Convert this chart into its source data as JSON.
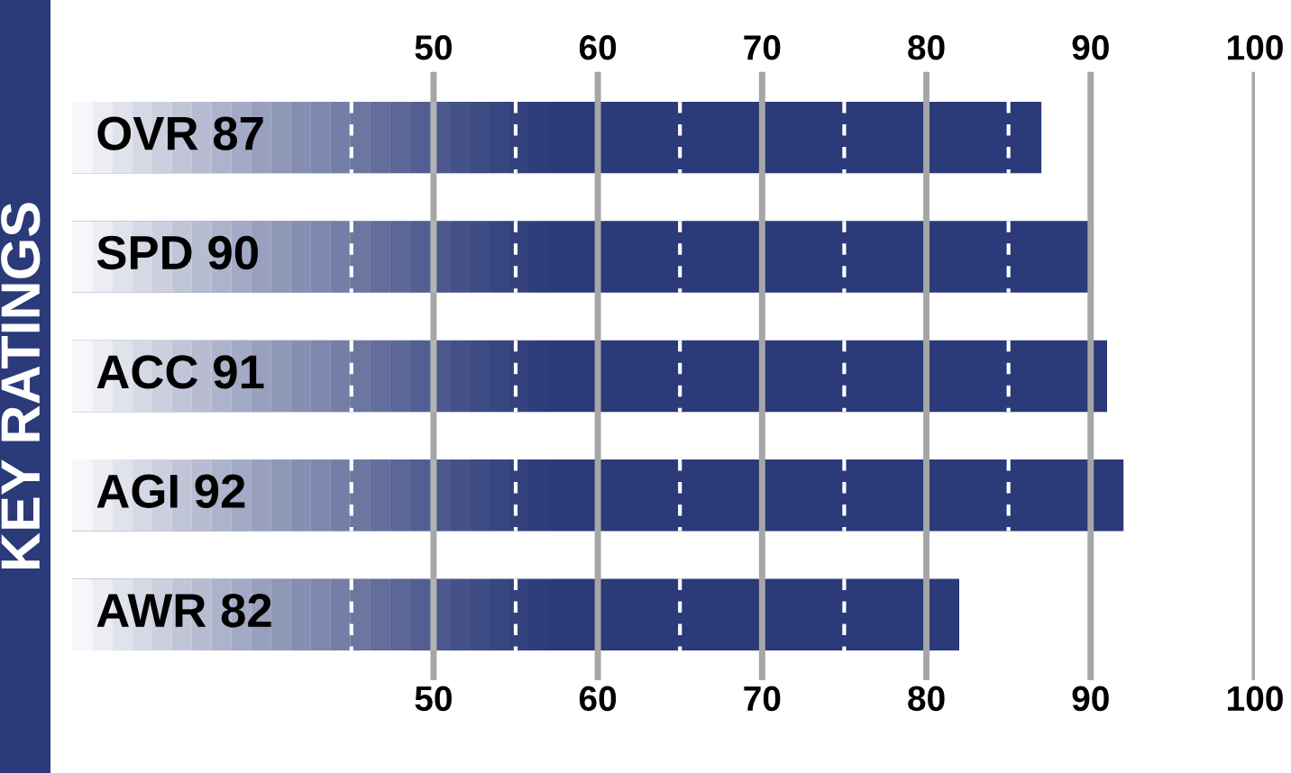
{
  "chart_data": {
    "type": "bar",
    "orientation": "horizontal",
    "ylabel": "KEY RATINGS",
    "categories": [
      "OVR 87",
      "SPD 90",
      "ACC 91",
      "AGI 92",
      "AWR 82"
    ],
    "values": [
      87,
      90,
      91,
      92,
      82
    ],
    "color": "#2b3a78",
    "xlim": [
      28,
      100
    ],
    "xticks": [
      50,
      60,
      70,
      80,
      90,
      100
    ],
    "x2lim": [
      28,
      100
    ],
    "x2ticks": [
      50,
      60,
      70,
      80,
      90,
      100
    ],
    "grid": "x"
  }
}
